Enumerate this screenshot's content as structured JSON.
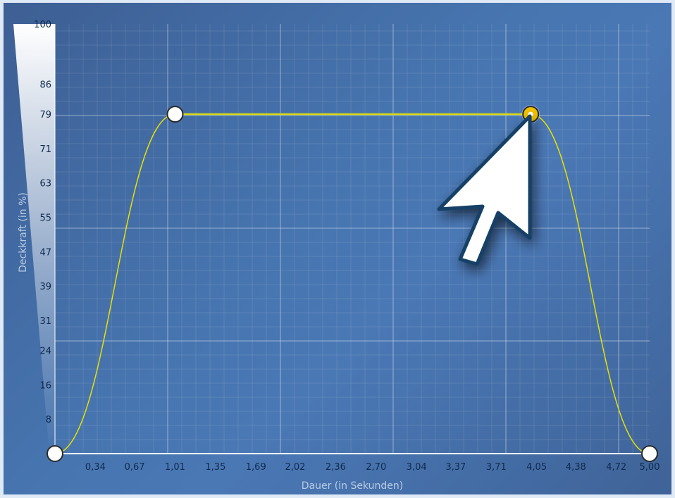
{
  "chart_data": {
    "type": "line",
    "xlabel": "Dauer (in Sekunden)",
    "ylabel": "Deckkraft (in %)",
    "xlim": [
      0,
      5.0
    ],
    "ylim": [
      0,
      100
    ],
    "x_ticks": [
      "0,34",
      "0,67",
      "1,01",
      "1,35",
      "1,69",
      "2,02",
      "2,36",
      "2,70",
      "3,04",
      "3,37",
      "3,71",
      "4,05",
      "4,38",
      "4,72",
      "5,00"
    ],
    "y_ticks": [
      "8",
      "16",
      "24",
      "31",
      "39",
      "47",
      "55",
      "63",
      "71",
      "79",
      "86",
      "100"
    ],
    "grid": true,
    "points": [
      {
        "x": 0,
        "y": 0
      },
      {
        "x": 1.01,
        "y": 79
      },
      {
        "x": 4.0,
        "y": 79,
        "selected": true
      },
      {
        "x": 5.0,
        "y": 0
      }
    ],
    "colors": {
      "curve": "#e8e000",
      "plateau": "#9db35c",
      "point": "#ffffff",
      "selected_point": "#f0c000",
      "cursor": "#ffffff",
      "cursor_outline": "#123f66"
    }
  }
}
